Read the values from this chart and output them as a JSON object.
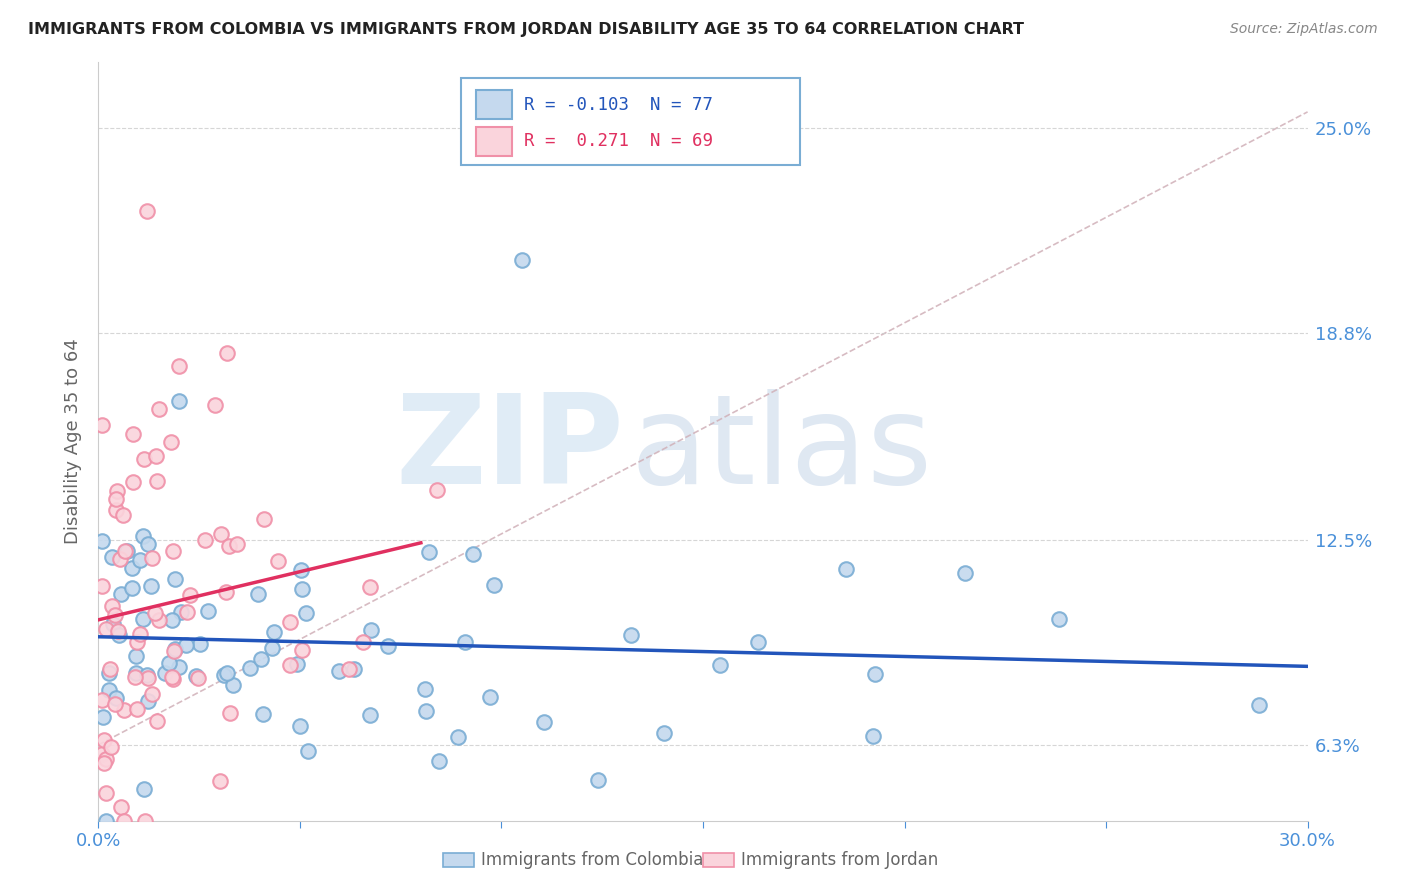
{
  "title": "IMMIGRANTS FROM COLOMBIA VS IMMIGRANTS FROM JORDAN DISABILITY AGE 35 TO 64 CORRELATION CHART",
  "source": "Source: ZipAtlas.com",
  "xlabel_colombia": "Immigrants from Colombia",
  "xlabel_jordan": "Immigrants from Jordan",
  "ylabel": "Disability Age 35 to 64",
  "watermark_zip": "ZIP",
  "watermark_atlas": "atlas",
  "xlim": [
    0.0,
    0.3
  ],
  "ylim": [
    0.04,
    0.27
  ],
  "ytick_labels_right": [
    "6.3%",
    "12.5%",
    "18.8%",
    "25.0%"
  ],
  "ytick_vals_right": [
    0.063,
    0.125,
    0.188,
    0.25
  ],
  "colombia_face_color": "#c5d9ee",
  "colombia_edge_color": "#7aadd4",
  "jordan_face_color": "#fad4dc",
  "jordan_edge_color": "#f090a8",
  "colombia_line_color": "#2255bb",
  "jordan_line_color": "#e03060",
  "diag_line_color": "#d0b0b8",
  "title_color": "#222222",
  "source_color": "#888888",
  "axis_label_color": "#666666",
  "tick_color": "#4a90d9",
  "grid_color": "#cccccc",
  "legend_edge_color": "#7aadd4",
  "R_colombia": -0.103,
  "N_colombia": 77,
  "R_jordan": 0.271,
  "N_jordan": 69
}
